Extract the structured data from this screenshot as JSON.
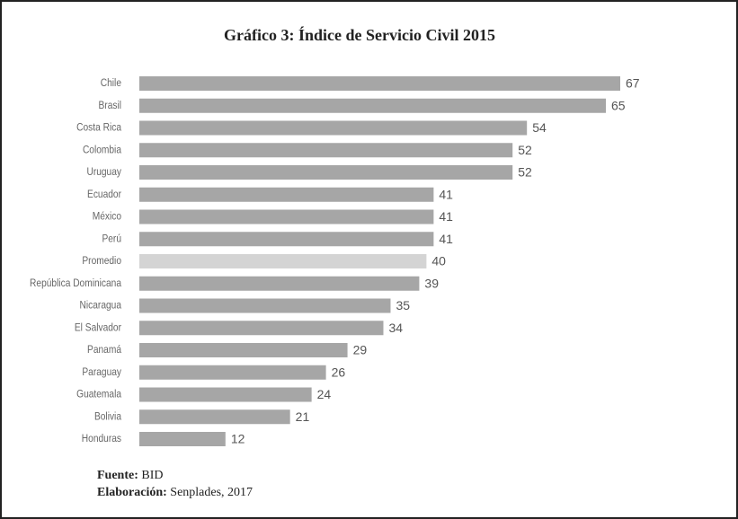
{
  "chart_data": {
    "type": "hbar",
    "title": "Gráfico 3: Índice de Servicio Civil 2015",
    "categories": [
      "Chile",
      "Brasil",
      "Costa Rica",
      "Colombia",
      "Uruguay",
      "Ecuador",
      "México",
      "Perú",
      "Promedio",
      "República Dominicana",
      "Nicaragua",
      "El Salvador",
      "Panamá",
      "Paraguay",
      "Guatemala",
      "Bolivia",
      "Honduras"
    ],
    "values": [
      67,
      65,
      54,
      52,
      52,
      41,
      41,
      41,
      40,
      39,
      35,
      34,
      29,
      26,
      24,
      21,
      12
    ],
    "colors": [
      "#a6a6a6",
      "#a6a6a6",
      "#a6a6a6",
      "#a6a6a6",
      "#a6a6a6",
      "#a6a6a6",
      "#a6a6a6",
      "#a6a6a6",
      "#d4d4d4",
      "#a6a6a6",
      "#a6a6a6",
      "#a6a6a6",
      "#a6a6a6",
      "#a6a6a6",
      "#a6a6a6",
      "#a6a6a6",
      "#a6a6a6"
    ],
    "xlim": [
      0,
      67
    ],
    "source_label": "Fuente:",
    "source": "BID",
    "credit_label": "Elaboración:",
    "credit": "Senplades, 2017"
  }
}
